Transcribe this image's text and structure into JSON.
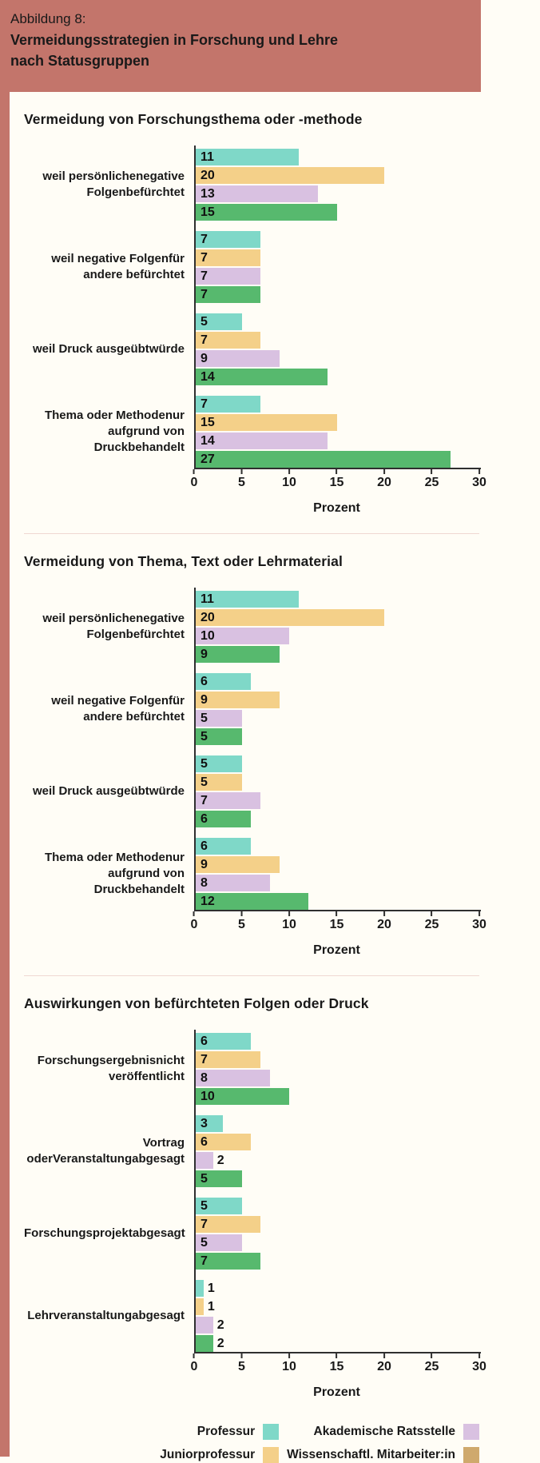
{
  "header": {
    "eyebrow": "Abbildung 8:",
    "title_line1": "Vermeidungsstrategien in Forschung und Lehre",
    "title_line2": "nach Statusgruppen"
  },
  "colors": {
    "header_bg": "#c3756b",
    "page_bg": "#fffdf6",
    "teal": "#7fd8c8",
    "yellow": "#f4d089",
    "lavender": "#d9c1e1",
    "green": "#57b96e",
    "tan": "#cfa96d",
    "divider": "#f0d8d2",
    "axis": "#2f2f2f",
    "text": "#191919"
  },
  "series_color_keys": [
    "teal",
    "yellow",
    "lavender",
    "green"
  ],
  "legend": {
    "items": [
      {
        "label": "Professur",
        "color_key": "teal"
      },
      {
        "label": "Juniorprofessur",
        "color_key": "yellow"
      },
      {
        "label": "Akademische Ratsstelle",
        "color_key": "lavender"
      },
      {
        "label": "Wissenschaftl. Mitarbeiter:in",
        "color_key": "tan"
      }
    ]
  },
  "chart_data": [
    {
      "type": "bar",
      "orientation": "horizontal",
      "title": "Vermeidung von Forschungsthema oder -methode",
      "categories": [
        "weil persönliche negative Folgen befürchtet",
        "weil negative Folgen für andere befürchtet",
        "weil Druck ausgeübt würde",
        "Thema oder Methode nur aufgrund von Druck behandelt"
      ],
      "categories_lines": [
        [
          "weil persönliche",
          "negative Folgen",
          "befürchtet"
        ],
        [
          "weil negative Folgen",
          "für andere befürchtet"
        ],
        [
          "weil Druck ausgeübt",
          "würde"
        ],
        [
          "Thema oder Methode",
          "nur aufgrund von Druck",
          "behandelt"
        ]
      ],
      "series": [
        {
          "name": "Professur",
          "values": [
            11,
            7,
            5,
            7
          ]
        },
        {
          "name": "Juniorprofessur",
          "values": [
            20,
            7,
            7,
            15
          ]
        },
        {
          "name": "Akademische Ratsstelle",
          "values": [
            13,
            7,
            9,
            14
          ]
        },
        {
          "name": "Wissenschaftl. Mitarbeiter:in",
          "values": [
            15,
            7,
            14,
            27
          ]
        }
      ],
      "xlabel": "Prozent",
      "xlim": [
        0,
        30
      ],
      "xticks": [
        0,
        5,
        10,
        15,
        20,
        25,
        30
      ]
    },
    {
      "type": "bar",
      "orientation": "horizontal",
      "title": "Vermeidung von Thema, Text oder Lehrmaterial",
      "categories": [
        "weil persönliche negative Folgen befürchtet",
        "weil negative Folgen für andere befürchtet",
        "weil Druck ausgeübt würde",
        "Thema oder Methode nur aufgrund von Druck behandelt"
      ],
      "categories_lines": [
        [
          "weil persönliche",
          "negative Folgen",
          "befürchtet"
        ],
        [
          "weil negative Folgen",
          "für andere befürchtet"
        ],
        [
          "weil Druck ausgeübt",
          "würde"
        ],
        [
          "Thema oder Methode",
          "nur aufgrund von Druck",
          "behandelt"
        ]
      ],
      "series": [
        {
          "name": "Professur",
          "values": [
            11,
            6,
            5,
            6
          ]
        },
        {
          "name": "Juniorprofessur",
          "values": [
            20,
            9,
            5,
            9
          ]
        },
        {
          "name": "Akademische Ratsstelle",
          "values": [
            10,
            5,
            7,
            8
          ]
        },
        {
          "name": "Wissenschaftl. Mitarbeiter:in",
          "values": [
            9,
            5,
            6,
            12
          ]
        }
      ],
      "xlabel": "Prozent",
      "xlim": [
        0,
        30
      ],
      "xticks": [
        0,
        5,
        10,
        15,
        20,
        25,
        30
      ]
    },
    {
      "type": "bar",
      "orientation": "horizontal",
      "title": "Auswirkungen von befürchteten Folgen oder Druck",
      "categories": [
        "Forschungsergebnis nicht veröffentlicht",
        "Vortrag oder Veranstaltung abgesagt",
        "Forschungsprojekt abgesagt",
        "Lehrveranstaltung abgesagt"
      ],
      "categories_lines": [
        [
          "Forschungsergebnis",
          "nicht veröffentlicht"
        ],
        [
          "Vortrag oder",
          "Veranstaltung",
          "abgesagt"
        ],
        [
          "Forschungsprojekt",
          "abgesagt"
        ],
        [
          "Lehrveranstaltung",
          "abgesagt"
        ]
      ],
      "series": [
        {
          "name": "Professur",
          "values": [
            6,
            3,
            5,
            1
          ]
        },
        {
          "name": "Juniorprofessur",
          "values": [
            7,
            6,
            7,
            1
          ]
        },
        {
          "name": "Akademische Ratsstelle",
          "values": [
            8,
            2,
            5,
            2
          ]
        },
        {
          "name": "Wissenschaftl. Mitarbeiter:in",
          "values": [
            10,
            5,
            7,
            2
          ]
        }
      ],
      "xlabel": "Prozent",
      "xlim": [
        0,
        30
      ],
      "xticks": [
        0,
        5,
        10,
        15,
        20,
        25,
        30
      ]
    }
  ]
}
